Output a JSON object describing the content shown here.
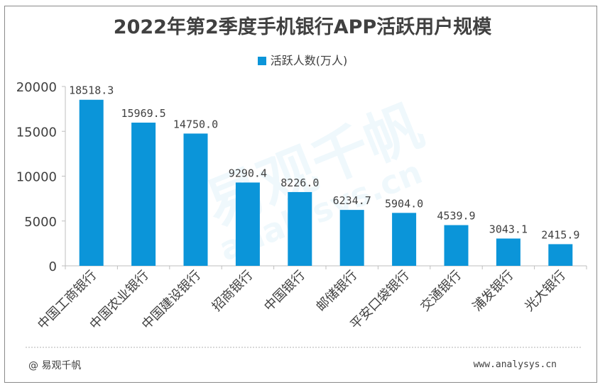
{
  "chart_data": {
    "type": "bar",
    "title": "2022年第2季度手机银行APP活跃用户规模",
    "categories": [
      "中国工商银行",
      "中国农业银行",
      "中国建设银行",
      "招商银行",
      "中国银行",
      "邮储银行",
      "平安口袋银行",
      "交通银行",
      "浦发银行",
      "光大银行"
    ],
    "series": [
      {
        "name": "活跃人数(万人)",
        "values": [
          18518.3,
          15969.5,
          14750.0,
          9290.4,
          8226.0,
          6234.7,
          5904.0,
          4539.9,
          3043.1,
          2415.9
        ]
      }
    ],
    "value_labels": [
      "18518.3",
      "15969.5",
      "14750.0",
      "9290.4",
      "8226.0",
      "6234.7",
      "5904.0",
      "4539.9",
      "3043.1",
      "2415.9"
    ],
    "ylim": [
      0,
      20000
    ],
    "yticks": [
      0,
      5000,
      10000,
      15000,
      20000
    ],
    "ytick_labels": [
      "0",
      "5000",
      "10000",
      "15000",
      "20000"
    ],
    "xlabel": "",
    "ylabel": "",
    "legend_position": "top-center",
    "bar_color": "#0b95d9"
  },
  "footer": {
    "source": "@ 易观千帆",
    "url": "www.analysys.cn"
  },
  "watermark": {
    "text": "易观千帆",
    "text2": "analysys.cn"
  }
}
